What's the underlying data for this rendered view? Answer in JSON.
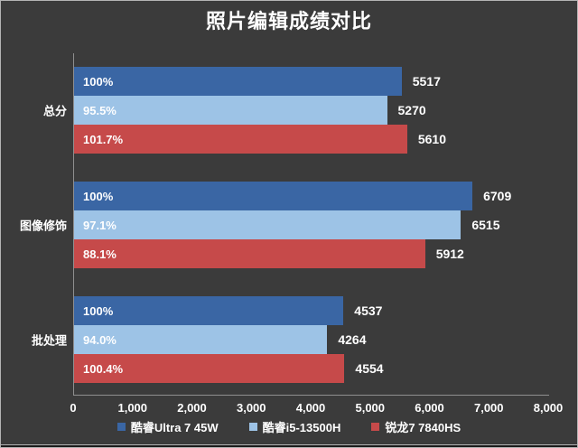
{
  "title": "照片编辑成绩对比",
  "colors": {
    "background": "#3B3B3B",
    "axis": "#8f8f8f",
    "text": "#FFFFFF"
  },
  "chart_data": {
    "type": "bar",
    "orientation": "horizontal",
    "title": "照片编辑成绩对比",
    "categories": [
      "总分",
      "图像修饰",
      "批处理"
    ],
    "series": [
      {
        "name": "酷睿Ultra 7 45W",
        "color": "#3A66A4",
        "values": [
          5517,
          6709,
          4537
        ],
        "percent_labels": [
          "100%",
          "100%",
          "100%"
        ]
      },
      {
        "name": "酷睿i5-13500H",
        "color": "#9DC3E6",
        "values": [
          5270,
          6515,
          4264
        ],
        "percent_labels": [
          "95.5%",
          "97.1%",
          "94.0%"
        ]
      },
      {
        "name": "锐龙7 7840HS",
        "color": "#C64A4A",
        "values": [
          5610,
          5912,
          4554
        ],
        "percent_labels": [
          "101.7%",
          "88.1%",
          "100.4%"
        ]
      }
    ],
    "xlim": [
      0,
      8000
    ],
    "x_ticks": [
      "0",
      "1,000",
      "2,000",
      "3,000",
      "4,000",
      "5,000",
      "6,000",
      "7,000",
      "8,000"
    ],
    "grid": false,
    "legend_position": "bottom"
  }
}
